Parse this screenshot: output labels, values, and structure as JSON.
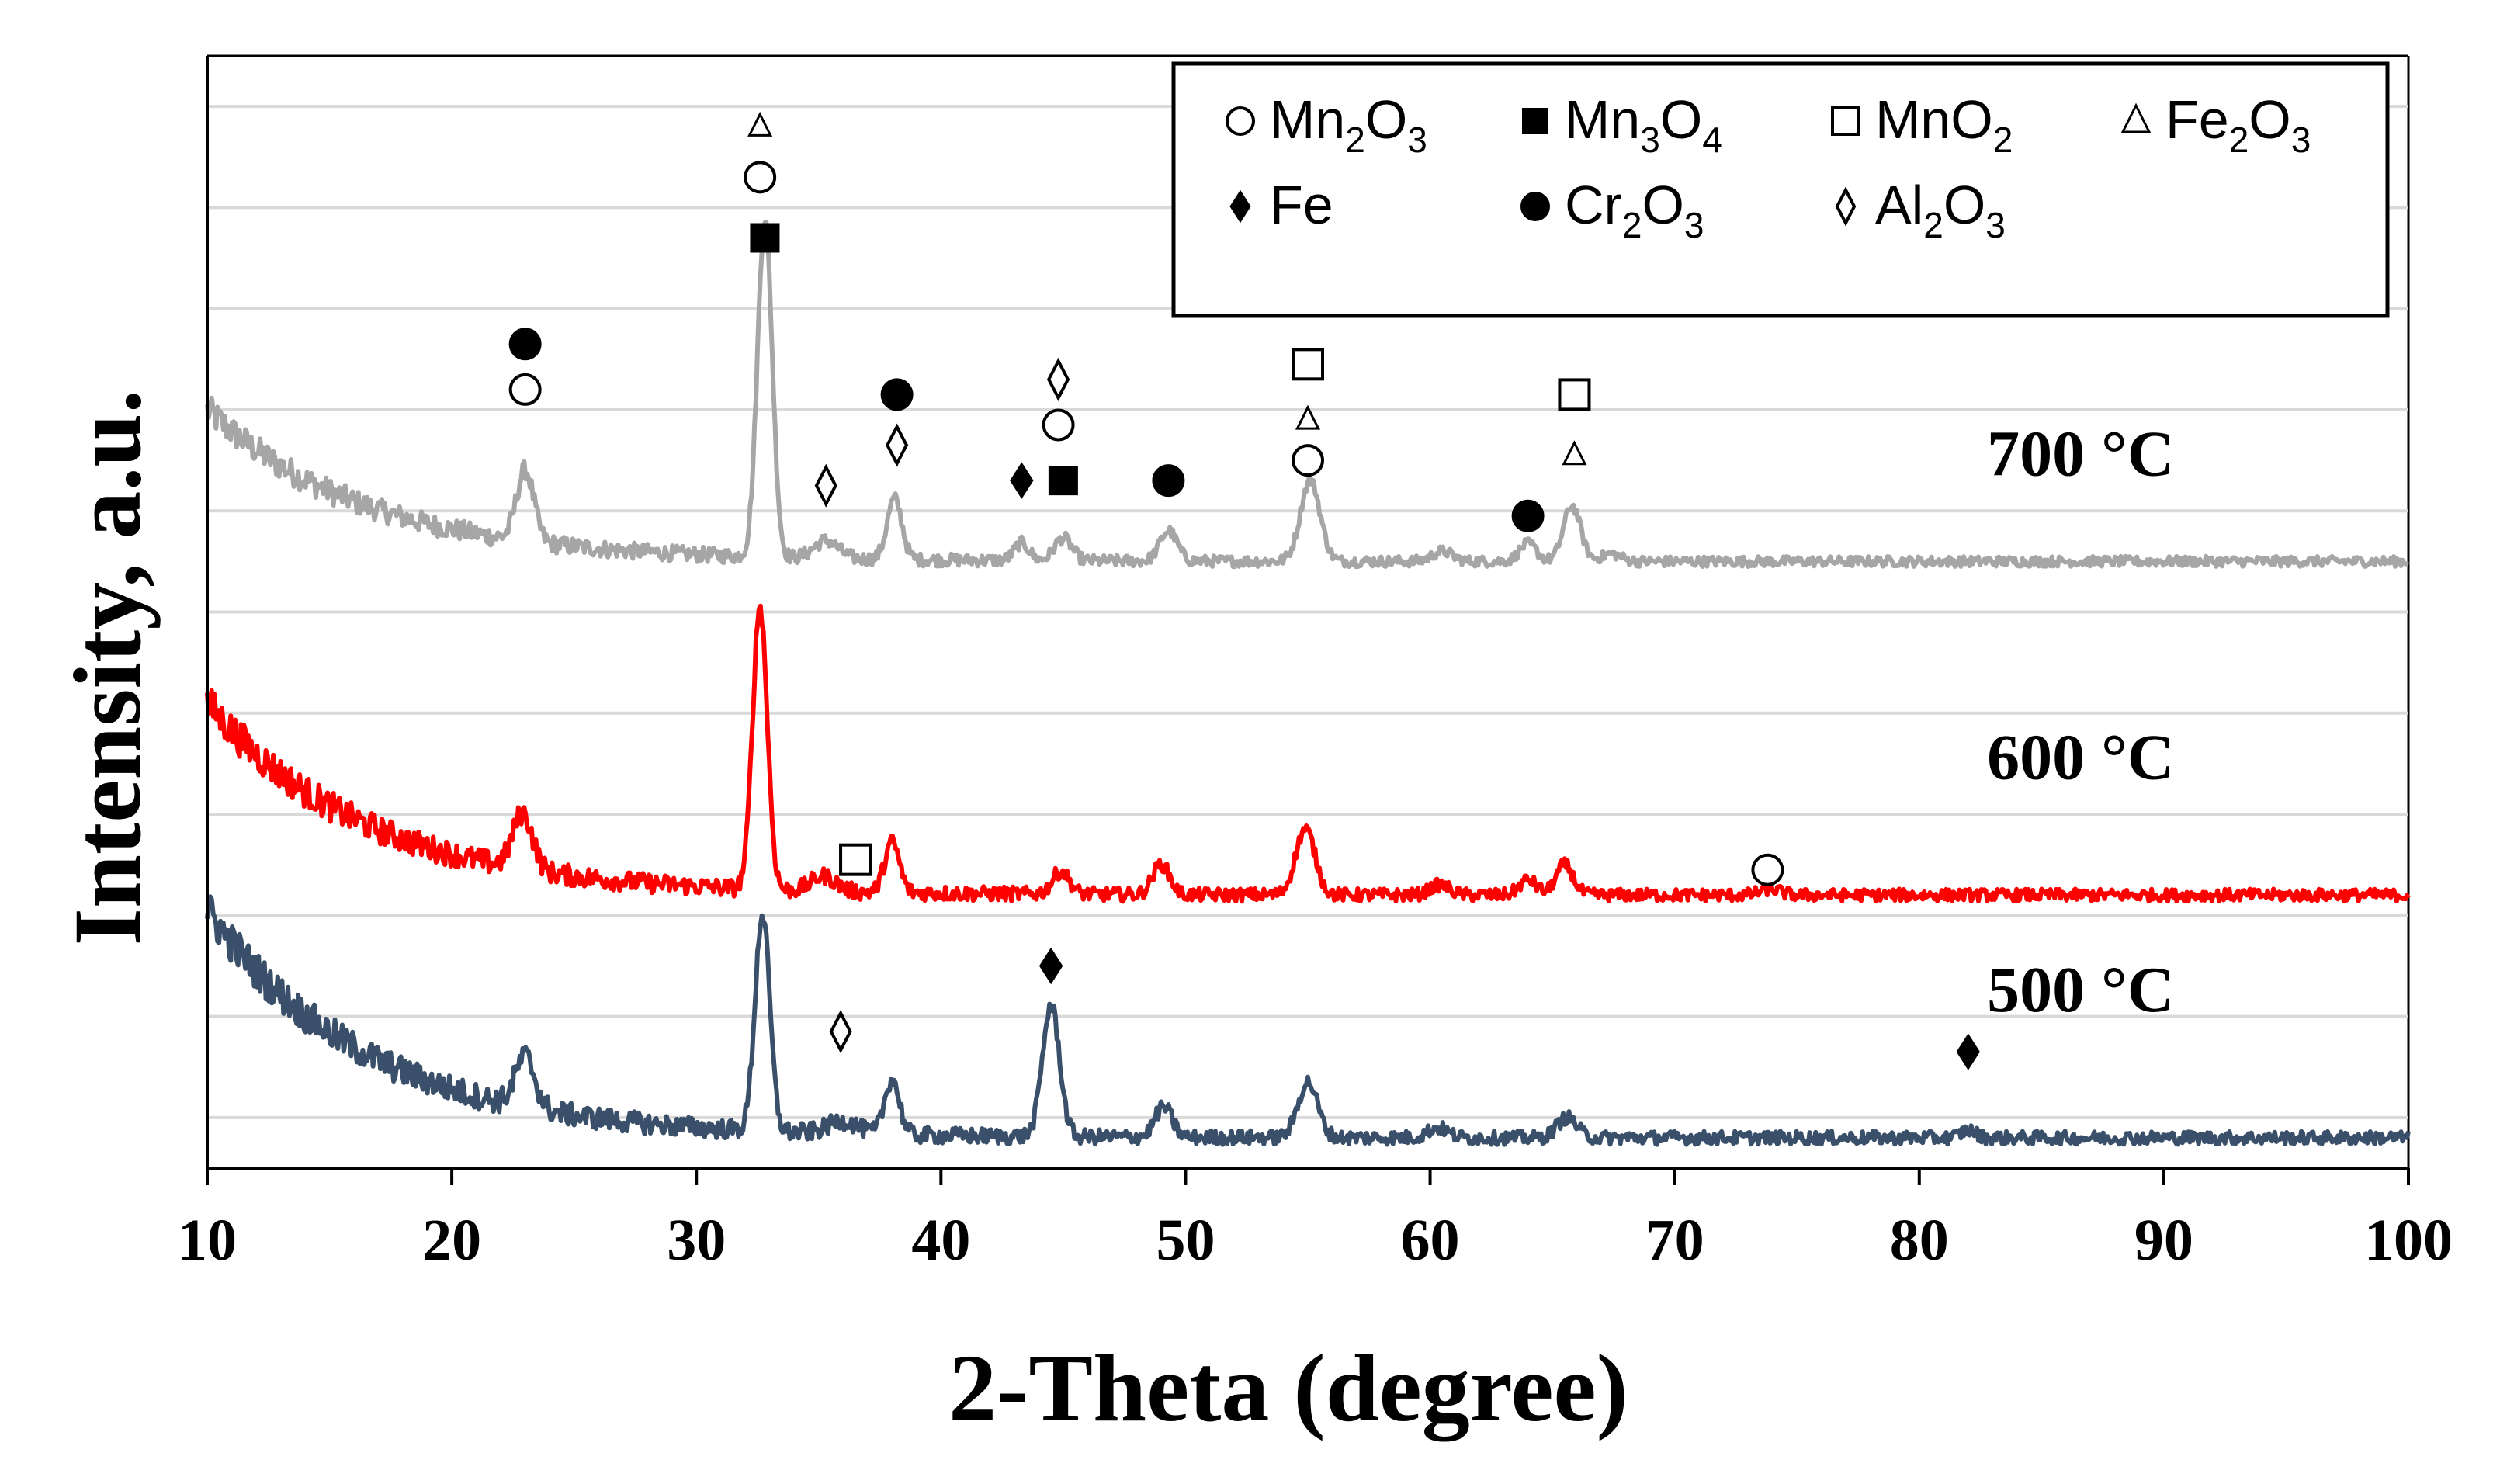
{
  "chart_data": {
    "type": "line",
    "title": "",
    "xlabel": "2-Theta (degree)",
    "ylabel": "Intensity, a.u.",
    "xlim": [
      10,
      100
    ],
    "xticks": [
      "10",
      "20",
      "30",
      "40",
      "50",
      "60",
      "70",
      "80",
      "90",
      "100"
    ],
    "yticks_shown": false,
    "grid": "horizontal",
    "legend_position": "top-right",
    "legend": [
      {
        "symbol": "open-circle",
        "name": "Mn",
        "sub1": "2",
        "mid": "O",
        "sub2": "3"
      },
      {
        "symbol": "filled-square",
        "name": "Mn",
        "sub1": "3",
        "mid": "O",
        "sub2": "4"
      },
      {
        "symbol": "open-square",
        "name": "MnO",
        "sub1": "2",
        "mid": "",
        "sub2": ""
      },
      {
        "symbol": "open-triangle",
        "name": "Fe",
        "sub1": "2",
        "mid": "O",
        "sub2": "3"
      },
      {
        "symbol": "filled-diamond",
        "name": "Fe",
        "sub1": "",
        "mid": "",
        "sub2": ""
      },
      {
        "symbol": "filled-circle",
        "name": "Cr",
        "sub1": "2",
        "mid": "O",
        "sub2": "3"
      },
      {
        "symbol": "open-diamond",
        "name": "Al",
        "sub1": "2",
        "mid": "O",
        "sub2": "3"
      }
    ],
    "series": [
      {
        "name": "700 °C",
        "color": "#a6a6a6",
        "baseline": 1.0,
        "background_amp": 3.0,
        "background_decay": 6.5,
        "noise": 0.1,
        "peaks": [
          {
            "x": 23.0,
            "h": 1.4,
            "w": 0.35
          },
          {
            "x": 32.8,
            "h": 6.7,
            "w": 0.3
          },
          {
            "x": 35.3,
            "h": 0.35,
            "w": 0.5
          },
          {
            "x": 38.1,
            "h": 1.2,
            "w": 0.3
          },
          {
            "x": 43.3,
            "h": 0.35,
            "w": 0.3
          },
          {
            "x": 45.0,
            "h": 0.45,
            "w": 0.35
          },
          {
            "x": 49.3,
            "h": 0.6,
            "w": 0.35
          },
          {
            "x": 55.1,
            "h": 1.6,
            "w": 0.4
          },
          {
            "x": 60.5,
            "h": 0.2,
            "w": 0.4
          },
          {
            "x": 64.0,
            "h": 0.35,
            "w": 0.35
          },
          {
            "x": 65.8,
            "h": 1.1,
            "w": 0.35
          },
          {
            "x": 67.4,
            "h": 0.15,
            "w": 0.4
          }
        ]
      },
      {
        "name": "600 °C",
        "color": "#ff0000",
        "baseline": -5.6,
        "background_amp": 3.8,
        "background_decay": 6.5,
        "noise": 0.12,
        "peaks": [
          {
            "x": 22.9,
            "h": 1.1,
            "w": 0.4
          },
          {
            "x": 32.6,
            "h": 5.6,
            "w": 0.3
          },
          {
            "x": 35.2,
            "h": 0.3,
            "w": 0.5
          },
          {
            "x": 38.0,
            "h": 1.0,
            "w": 0.3
          },
          {
            "x": 44.9,
            "h": 0.45,
            "w": 0.35
          },
          {
            "x": 49.0,
            "h": 0.6,
            "w": 0.35
          },
          {
            "x": 54.9,
            "h": 1.3,
            "w": 0.4
          },
          {
            "x": 60.4,
            "h": 0.2,
            "w": 0.4
          },
          {
            "x": 64.0,
            "h": 0.3,
            "w": 0.35
          },
          {
            "x": 65.5,
            "h": 0.6,
            "w": 0.35
          },
          {
            "x": 73.9,
            "h": 0.12,
            "w": 0.4
          }
        ]
      },
      {
        "name": "500 °C",
        "color": "#3a4f69",
        "baseline": -10.4,
        "background_amp": 4.5,
        "background_decay": 6.5,
        "noise": 0.13,
        "peaks": [
          {
            "x": 23.0,
            "h": 1.0,
            "w": 0.4
          },
          {
            "x": 32.7,
            "h": 4.3,
            "w": 0.3
          },
          {
            "x": 36.0,
            "h": 0.25,
            "w": 0.6
          },
          {
            "x": 38.0,
            "h": 1.1,
            "w": 0.3
          },
          {
            "x": 44.5,
            "h": 2.6,
            "w": 0.35
          },
          {
            "x": 49.1,
            "h": 0.6,
            "w": 0.35
          },
          {
            "x": 55.0,
            "h": 1.1,
            "w": 0.4
          },
          {
            "x": 60.3,
            "h": 0.2,
            "w": 0.4
          },
          {
            "x": 65.6,
            "h": 0.4,
            "w": 0.4
          },
          {
            "x": 82.0,
            "h": 0.15,
            "w": 0.3
          }
        ]
      }
    ],
    "ylim": [
      -11,
      11
    ],
    "grid_y": [
      -10,
      -8,
      -6,
      -4,
      -2,
      0,
      2,
      4,
      6,
      8,
      10
    ],
    "phase_markers": [
      {
        "symbol": "filled-circle",
        "x": 23.0,
        "y": 5.3
      },
      {
        "symbol": "open-circle",
        "x": 23.0,
        "y": 4.4
      },
      {
        "symbol": "open-triangle",
        "x": 32.6,
        "y": 9.6
      },
      {
        "symbol": "open-circle",
        "x": 32.6,
        "y": 8.6
      },
      {
        "symbol": "filled-square",
        "x": 32.8,
        "y": 7.4
      },
      {
        "symbol": "open-diamond",
        "x": 35.3,
        "y": 2.5
      },
      {
        "symbol": "filled-circle",
        "x": 38.2,
        "y": 4.3
      },
      {
        "symbol": "open-diamond",
        "x": 38.2,
        "y": 3.3
      },
      {
        "symbol": "filled-diamond",
        "x": 43.3,
        "y": 2.6
      },
      {
        "symbol": "filled-square",
        "x": 45.0,
        "y": 2.6
      },
      {
        "symbol": "open-diamond",
        "x": 44.8,
        "y": 4.6
      },
      {
        "symbol": "open-circle",
        "x": 44.8,
        "y": 3.7
      },
      {
        "symbol": "filled-circle",
        "x": 49.3,
        "y": 2.6
      },
      {
        "symbol": "open-square",
        "x": 55.0,
        "y": 4.9
      },
      {
        "symbol": "open-triangle",
        "x": 55.0,
        "y": 3.8
      },
      {
        "symbol": "open-circle",
        "x": 55.0,
        "y": 3.0
      },
      {
        "symbol": "filled-circle",
        "x": 64.0,
        "y": 1.9
      },
      {
        "symbol": "open-square",
        "x": 65.9,
        "y": 4.3
      },
      {
        "symbol": "open-triangle",
        "x": 65.9,
        "y": 3.1
      },
      {
        "symbol": "open-square",
        "x": 36.5,
        "y": -4.9
      },
      {
        "symbol": "open-circle",
        "x": 73.8,
        "y": -5.1
      },
      {
        "symbol": "filled-diamond",
        "x": 44.5,
        "y": -7.0
      },
      {
        "symbol": "open-diamond",
        "x": 35.9,
        "y": -8.3
      },
      {
        "symbol": "filled-diamond",
        "x": 82.0,
        "y": -8.7
      }
    ],
    "series_labels": [
      {
        "text": "700 °C",
        "x": 86.6,
        "y": 2.7
      },
      {
        "text": "600 °C",
        "x": 86.6,
        "y": -3.3
      },
      {
        "text": "500 °C",
        "x": 86.6,
        "y": -7.9
      }
    ]
  }
}
